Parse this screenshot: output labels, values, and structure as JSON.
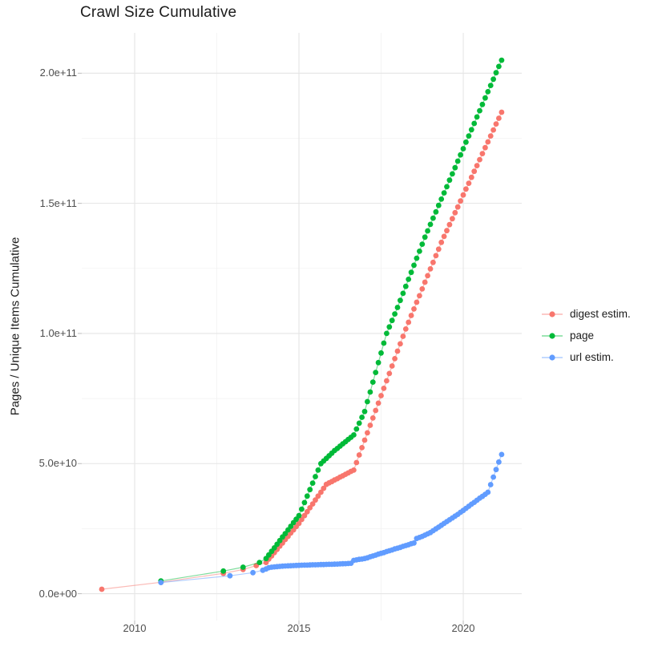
{
  "title": "Crawl Size Cumulative",
  "chart_data": {
    "type": "scatter",
    "title": "Crawl Size Cumulative",
    "xlabel": "",
    "ylabel": "Pages / Unique Items Cumulative",
    "y_unit_note": "y values stored in billions (1e9); axis labels use scientific notation",
    "xlim": [
      2008.39,
      2021.78
    ],
    "ylim_billions": [
      -10.3,
      215.5
    ],
    "grid": true,
    "legend_position": "right",
    "x_ticks": {
      "values": [
        2010,
        2015,
        2020
      ],
      "labels": [
        "2010",
        "2015",
        "2020"
      ]
    },
    "y_ticks": {
      "values_billions": [
        0,
        50,
        100,
        150,
        200
      ],
      "labels": [
        "0.0e+00",
        "5.0e+10",
        "1.0e+11",
        "1.5e+11",
        "2.0e+11"
      ]
    },
    "minor_gridlines": {
      "x": [
        2012.5,
        2017.5
      ],
      "y_billions": [
        25,
        75,
        125,
        175
      ]
    },
    "series": [
      {
        "name": "digest estim.",
        "color": "#F8766D",
        "points": [
          [
            2009,
            1.7
          ],
          [
            2010.8,
            4.4
          ],
          [
            2012.7,
            7.8
          ],
          [
            2013.3,
            9.3
          ],
          [
            2013.7,
            10.8
          ],
          [
            2014,
            12
          ],
          [
            2014.083,
            13.3
          ],
          [
            2014.167,
            14.5
          ],
          [
            2014.25,
            15.8
          ],
          [
            2014.333,
            17
          ],
          [
            2014.417,
            18.3
          ],
          [
            2014.5,
            19.5
          ],
          [
            2014.583,
            20.8
          ],
          [
            2014.667,
            22
          ],
          [
            2014.75,
            23.3
          ],
          [
            2014.833,
            24.5
          ],
          [
            2014.917,
            25.8
          ],
          [
            2015,
            27
          ],
          [
            2015.083,
            28.5
          ],
          [
            2015.167,
            30
          ],
          [
            2015.25,
            31.5
          ],
          [
            2015.333,
            33
          ],
          [
            2015.417,
            34.5
          ],
          [
            2015.5,
            36
          ],
          [
            2015.583,
            37.5
          ],
          [
            2015.667,
            39
          ],
          [
            2015.75,
            40.5
          ],
          [
            2015.833,
            42
          ],
          [
            2015.917,
            42.6
          ],
          [
            2016,
            43.1
          ],
          [
            2016.083,
            43.7
          ],
          [
            2016.167,
            44.2
          ],
          [
            2016.25,
            44.8
          ],
          [
            2016.333,
            45.3
          ],
          [
            2016.417,
            45.9
          ],
          [
            2016.5,
            46.4
          ],
          [
            2016.583,
            47
          ],
          [
            2016.667,
            47.5
          ],
          [
            2016.75,
            50.4
          ],
          [
            2016.833,
            53.3
          ],
          [
            2016.917,
            56.1
          ],
          [
            2017,
            59
          ],
          [
            2017.083,
            61.8
          ],
          [
            2017.167,
            64.7
          ],
          [
            2017.25,
            67.5
          ],
          [
            2017.333,
            70.4
          ],
          [
            2017.417,
            73.2
          ],
          [
            2017.5,
            76.1
          ],
          [
            2017.583,
            78.9
          ],
          [
            2017.667,
            81.8
          ],
          [
            2017.75,
            84.6
          ],
          [
            2017.833,
            87.5
          ],
          [
            2017.917,
            90.3
          ],
          [
            2018,
            93.2
          ],
          [
            2018.083,
            96
          ],
          [
            2018.167,
            98.9
          ],
          [
            2018.25,
            101.7
          ],
          [
            2018.333,
            104.3
          ],
          [
            2018.417,
            106.9
          ],
          [
            2018.5,
            109.4
          ],
          [
            2018.583,
            112
          ],
          [
            2018.667,
            114.5
          ],
          [
            2018.75,
            117.1
          ],
          [
            2018.833,
            119.7
          ],
          [
            2018.917,
            122.2
          ],
          [
            2019,
            124.8
          ],
          [
            2019.083,
            127.3
          ],
          [
            2019.167,
            129.9
          ],
          [
            2019.25,
            132.4
          ],
          [
            2019.333,
            135
          ],
          [
            2019.417,
            137.3
          ],
          [
            2019.5,
            139.5
          ],
          [
            2019.583,
            141.8
          ],
          [
            2019.667,
            144.1
          ],
          [
            2019.75,
            146.4
          ],
          [
            2019.833,
            148.6
          ],
          [
            2019.917,
            150.9
          ],
          [
            2020,
            153.2
          ],
          [
            2020.083,
            155.5
          ],
          [
            2020.167,
            157.7
          ],
          [
            2020.25,
            160
          ],
          [
            2020.333,
            162.3
          ],
          [
            2020.417,
            164.5
          ],
          [
            2020.5,
            166.8
          ],
          [
            2020.583,
            169.1
          ],
          [
            2020.667,
            171.4
          ],
          [
            2020.75,
            173.6
          ],
          [
            2020.833,
            175.9
          ],
          [
            2020.917,
            178.2
          ],
          [
            2021,
            180.5
          ],
          [
            2021.083,
            182.7
          ],
          [
            2021.167,
            185
          ]
        ]
      },
      {
        "name": "page",
        "color": "#00BA38",
        "points": [
          [
            2010.8,
            4.9
          ],
          [
            2012.7,
            8.7
          ],
          [
            2013.3,
            10.2
          ],
          [
            2013.8,
            12
          ],
          [
            2014,
            13.5
          ],
          [
            2014.083,
            14.9
          ],
          [
            2014.167,
            16.3
          ],
          [
            2014.25,
            17.6
          ],
          [
            2014.333,
            19
          ],
          [
            2014.417,
            20.4
          ],
          [
            2014.5,
            21.8
          ],
          [
            2014.583,
            23.1
          ],
          [
            2014.667,
            24.5
          ],
          [
            2014.75,
            25.9
          ],
          [
            2014.833,
            27.3
          ],
          [
            2014.917,
            28.6
          ],
          [
            2015,
            30
          ],
          [
            2015.083,
            32.5
          ],
          [
            2015.167,
            35
          ],
          [
            2015.25,
            37.5
          ],
          [
            2015.333,
            40
          ],
          [
            2015.417,
            42.5
          ],
          [
            2015.5,
            45
          ],
          [
            2015.583,
            47.5
          ],
          [
            2015.667,
            50
          ],
          [
            2015.75,
            51
          ],
          [
            2015.833,
            52
          ],
          [
            2015.917,
            53
          ],
          [
            2016,
            54
          ],
          [
            2016.083,
            55
          ],
          [
            2016.167,
            55.8
          ],
          [
            2016.25,
            56.7
          ],
          [
            2016.333,
            57.6
          ],
          [
            2016.417,
            58.4
          ],
          [
            2016.5,
            59.3
          ],
          [
            2016.583,
            60.1
          ],
          [
            2016.667,
            61
          ],
          [
            2016.75,
            63.3
          ],
          [
            2016.833,
            65.5
          ],
          [
            2016.917,
            67.8
          ],
          [
            2017,
            70
          ],
          [
            2017.083,
            73.8
          ],
          [
            2017.167,
            77.5
          ],
          [
            2017.25,
            81.3
          ],
          [
            2017.333,
            85
          ],
          [
            2017.417,
            88.8
          ],
          [
            2017.5,
            92.5
          ],
          [
            2017.583,
            96.3
          ],
          [
            2017.667,
            100
          ],
          [
            2017.75,
            102.5
          ],
          [
            2017.833,
            105
          ],
          [
            2017.917,
            107.5
          ],
          [
            2018,
            110
          ],
          [
            2018.083,
            112.7
          ],
          [
            2018.167,
            115.4
          ],
          [
            2018.25,
            118.1
          ],
          [
            2018.333,
            120.8
          ],
          [
            2018.417,
            123.5
          ],
          [
            2018.5,
            126.2
          ],
          [
            2018.583,
            128.9
          ],
          [
            2018.667,
            131.6
          ],
          [
            2018.75,
            134.3
          ],
          [
            2018.833,
            137
          ],
          [
            2018.917,
            139.4
          ],
          [
            2019,
            141.9
          ],
          [
            2019.083,
            144.3
          ],
          [
            2019.167,
            146.7
          ],
          [
            2019.25,
            149.2
          ],
          [
            2019.333,
            151.6
          ],
          [
            2019.417,
            154
          ],
          [
            2019.5,
            156.4
          ],
          [
            2019.583,
            158.9
          ],
          [
            2019.667,
            161.3
          ],
          [
            2019.75,
            163.7
          ],
          [
            2019.833,
            166.2
          ],
          [
            2019.917,
            168.6
          ],
          [
            2020,
            171
          ],
          [
            2020.083,
            173.5
          ],
          [
            2020.167,
            175.9
          ],
          [
            2020.25,
            178.3
          ],
          [
            2020.333,
            180.7
          ],
          [
            2020.417,
            183.2
          ],
          [
            2020.5,
            185.6
          ],
          [
            2020.583,
            188
          ],
          [
            2020.667,
            190.5
          ],
          [
            2020.75,
            192.9
          ],
          [
            2020.833,
            195.3
          ],
          [
            2020.917,
            197.7
          ],
          [
            2021,
            200.2
          ],
          [
            2021.083,
            202.6
          ],
          [
            2021.167,
            205
          ]
        ]
      },
      {
        "name": "url estim.",
        "color": "#619CFF",
        "points": [
          [
            2010.8,
            4.3
          ],
          [
            2012.9,
            6.9
          ],
          [
            2013.6,
            8.1
          ],
          [
            2013.9,
            9
          ],
          [
            2014,
            9.5
          ],
          [
            2014.083,
            10
          ],
          [
            2014.167,
            10.2
          ],
          [
            2014.25,
            10.3
          ],
          [
            2014.333,
            10.4
          ],
          [
            2014.417,
            10.5
          ],
          [
            2014.5,
            10.6
          ],
          [
            2014.583,
            10.65
          ],
          [
            2014.667,
            10.7
          ],
          [
            2014.75,
            10.75
          ],
          [
            2014.833,
            10.8
          ],
          [
            2014.917,
            10.85
          ],
          [
            2015,
            10.9
          ],
          [
            2015.083,
            10.95
          ],
          [
            2015.167,
            11
          ],
          [
            2015.25,
            11
          ],
          [
            2015.333,
            11.05
          ],
          [
            2015.417,
            11.1
          ],
          [
            2015.5,
            11.1
          ],
          [
            2015.583,
            11.15
          ],
          [
            2015.667,
            11.2
          ],
          [
            2015.75,
            11.2
          ],
          [
            2015.833,
            11.25
          ],
          [
            2015.917,
            11.3
          ],
          [
            2016,
            11.3
          ],
          [
            2016.083,
            11.35
          ],
          [
            2016.167,
            11.4
          ],
          [
            2016.25,
            11.45
          ],
          [
            2016.333,
            11.5
          ],
          [
            2016.417,
            11.55
          ],
          [
            2016.5,
            11.6
          ],
          [
            2016.583,
            11.7
          ],
          [
            2016.667,
            12.8
          ],
          [
            2016.75,
            13
          ],
          [
            2016.833,
            13.2
          ],
          [
            2016.917,
            13.3
          ],
          [
            2017,
            13.5
          ],
          [
            2017.083,
            13.8
          ],
          [
            2017.167,
            14.2
          ],
          [
            2017.25,
            14.5
          ],
          [
            2017.333,
            14.8
          ],
          [
            2017.417,
            15.2
          ],
          [
            2017.5,
            15.5
          ],
          [
            2017.583,
            15.8
          ],
          [
            2017.667,
            16.2
          ],
          [
            2017.75,
            16.5
          ],
          [
            2017.833,
            16.8
          ],
          [
            2017.917,
            17.2
          ],
          [
            2018,
            17.5
          ],
          [
            2018.083,
            17.8
          ],
          [
            2018.167,
            18.2
          ],
          [
            2018.25,
            18.5
          ],
          [
            2018.333,
            18.8
          ],
          [
            2018.417,
            19.2
          ],
          [
            2018.5,
            19.5
          ],
          [
            2018.583,
            21.2
          ],
          [
            2018.667,
            21.6
          ],
          [
            2018.75,
            22
          ],
          [
            2018.833,
            22.5
          ],
          [
            2018.917,
            23
          ],
          [
            2019,
            23.5
          ],
          [
            2019.083,
            24.2
          ],
          [
            2019.167,
            24.9
          ],
          [
            2019.25,
            25.6
          ],
          [
            2019.333,
            26.3
          ],
          [
            2019.417,
            27
          ],
          [
            2019.5,
            27.7
          ],
          [
            2019.583,
            28.4
          ],
          [
            2019.667,
            29.1
          ],
          [
            2019.75,
            29.8
          ],
          [
            2019.833,
            30.5
          ],
          [
            2019.917,
            31.3
          ],
          [
            2020,
            32
          ],
          [
            2020.083,
            32.8
          ],
          [
            2020.167,
            33.6
          ],
          [
            2020.25,
            34.4
          ],
          [
            2020.333,
            35.1
          ],
          [
            2020.417,
            35.9
          ],
          [
            2020.5,
            36.7
          ],
          [
            2020.583,
            37.4
          ],
          [
            2020.667,
            38.2
          ],
          [
            2020.75,
            39
          ],
          [
            2020.833,
            41.9
          ],
          [
            2020.917,
            44.8
          ],
          [
            2021,
            47.7
          ],
          [
            2021.083,
            50.6
          ],
          [
            2021.167,
            53.5
          ]
        ]
      }
    ]
  },
  "style": {
    "major_grid_color": "#e5e5e5",
    "minor_grid_color": "#f2f2f2",
    "tick_color": "#bdbdbd",
    "tick_label_color": "#4d4d4d",
    "text_color": "#1c1c1c",
    "background": "#ffffff"
  }
}
